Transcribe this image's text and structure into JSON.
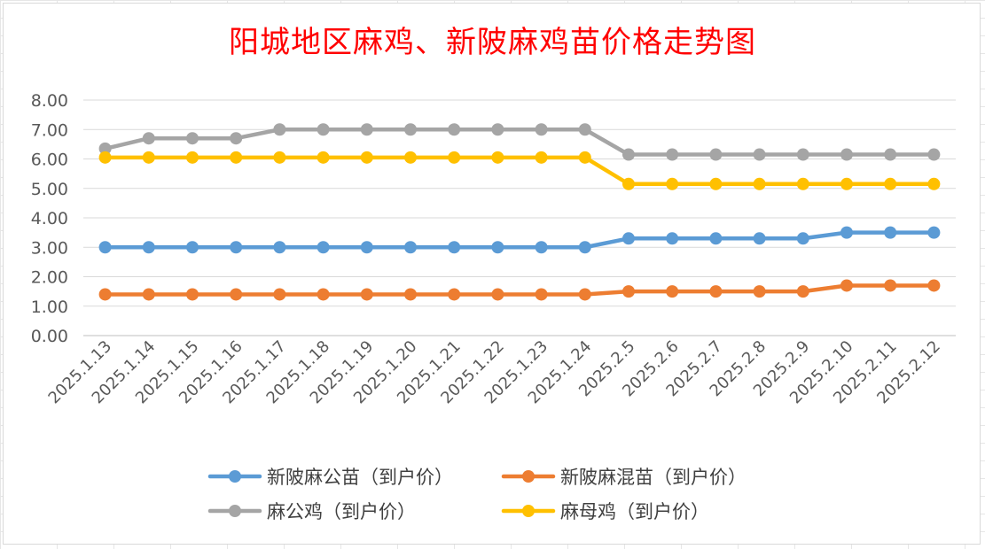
{
  "chart_data": {
    "type": "line",
    "title": "阳城地区麻鸡、新陂麻鸡苗价格走势图",
    "x": [
      "2025.1.13",
      "2025.1.14",
      "2025.1.15",
      "2025.1.16",
      "2025.1.17",
      "2025.1.18",
      "2025.1.19",
      "2025.1.20",
      "2025.1.21",
      "2025.1.22",
      "2025.1.23",
      "2025.1.24",
      "2025.2.5",
      "2025.2.6",
      "2025.2.7",
      "2025.2.8",
      "2025.2.9",
      "2025.2.10",
      "2025.2.11",
      "2025.2.12"
    ],
    "ylim": [
      0,
      8
    ],
    "yticks": [
      "0.00",
      "1.00",
      "2.00",
      "3.00",
      "4.00",
      "5.00",
      "6.00",
      "7.00",
      "8.00"
    ],
    "grid": true,
    "legend_position": "bottom",
    "series": [
      {
        "name": "新陂麻公苗（到户价）",
        "color": "#5b9bd5",
        "values": [
          3.0,
          3.0,
          3.0,
          3.0,
          3.0,
          3.0,
          3.0,
          3.0,
          3.0,
          3.0,
          3.0,
          3.0,
          3.3,
          3.3,
          3.3,
          3.3,
          3.3,
          3.5,
          3.5,
          3.5
        ]
      },
      {
        "name": "新陂麻混苗（到户价）",
        "color": "#ed7d31",
        "values": [
          1.4,
          1.4,
          1.4,
          1.4,
          1.4,
          1.4,
          1.4,
          1.4,
          1.4,
          1.4,
          1.4,
          1.4,
          1.5,
          1.5,
          1.5,
          1.5,
          1.5,
          1.7,
          1.7,
          1.7
        ]
      },
      {
        "name": "麻公鸡（到户价）",
        "color": "#a5a5a5",
        "values": [
          6.35,
          6.7,
          6.7,
          6.7,
          7.0,
          7.0,
          7.0,
          7.0,
          7.0,
          7.0,
          7.0,
          7.0,
          6.15,
          6.15,
          6.15,
          6.15,
          6.15,
          6.15,
          6.15,
          6.15
        ]
      },
      {
        "name": "麻母鸡（到户价）",
        "color": "#ffc000",
        "values": [
          6.05,
          6.05,
          6.05,
          6.05,
          6.05,
          6.05,
          6.05,
          6.05,
          6.05,
          6.05,
          6.05,
          6.05,
          5.15,
          5.15,
          5.15,
          5.15,
          5.15,
          5.15,
          5.15,
          5.15
        ]
      }
    ]
  }
}
